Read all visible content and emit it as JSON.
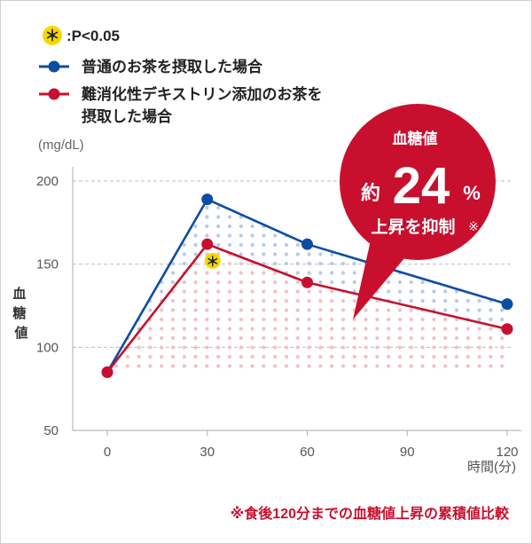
{
  "chart_data": {
    "type": "line",
    "x": [
      0,
      30,
      60,
      90,
      120
    ],
    "xlim": [
      0,
      120
    ],
    "ylim": [
      50,
      200
    ],
    "xticks": [
      "0",
      "30",
      "60",
      "90",
      "120"
    ],
    "yticks": [
      "50",
      "100",
      "150",
      "200"
    ],
    "xlabel": "時間(分)",
    "ylabel": "血\n糖\n値",
    "yunit": "(mg/dL)",
    "grid": "dashed horizontal",
    "legend_position": "top-left",
    "series": [
      {
        "name": "普通のお茶を摂取した場合",
        "color": "#0b4da2",
        "points": [
          [
            0,
            85
          ],
          [
            30,
            189
          ],
          [
            60,
            162
          ],
          [
            120,
            126
          ]
        ]
      },
      {
        "name": "難消化性デキストリン添加のお茶を摂取した場合",
        "color": "#c8102e",
        "points": [
          [
            0,
            85
          ],
          [
            30,
            162
          ],
          [
            60,
            139
          ],
          [
            120,
            111
          ]
        ]
      }
    ],
    "significance": {
      "symbol": "＊",
      "label": ":P<0.05",
      "at": [
        30,
        152
      ],
      "color": "#f5d800"
    },
    "callout": {
      "line1": "血糖値",
      "prefix": "約",
      "value": "24",
      "unit": "%",
      "line3": "上昇を抑制",
      "mark": "※",
      "color": "#c8102e"
    },
    "footnote": "※食後120分までの血糖値上昇の累積値比較"
  }
}
